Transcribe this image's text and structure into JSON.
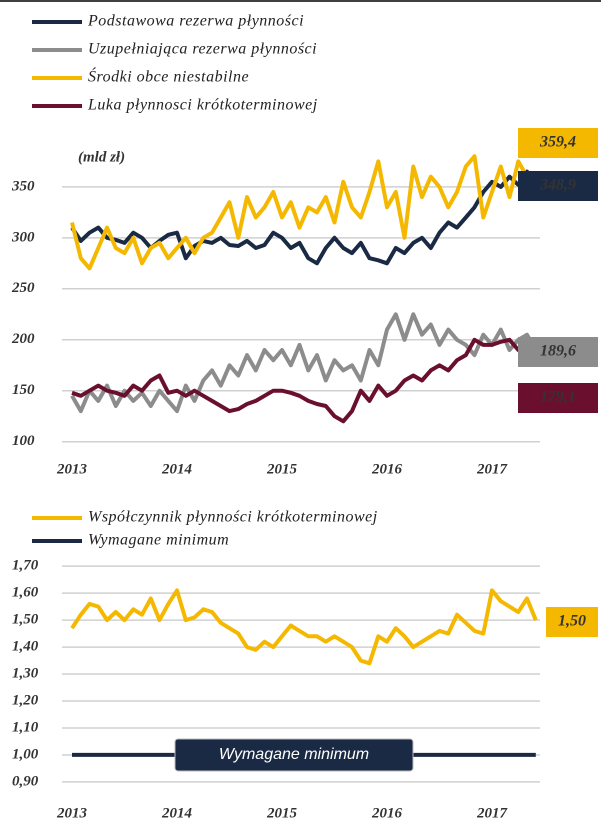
{
  "chart_data": [
    {
      "type": "line",
      "unit_label": "(mld zł)",
      "ylim": [
        85,
        395
      ],
      "yticks": [
        100,
        150,
        200,
        250,
        300,
        350
      ],
      "grid": true,
      "categories": [
        "2013",
        null,
        null,
        null,
        null,
        null,
        null,
        null,
        null,
        null,
        null,
        null,
        "2014",
        null,
        null,
        null,
        null,
        null,
        null,
        null,
        null,
        null,
        null,
        null,
        "2015",
        null,
        null,
        null,
        null,
        null,
        null,
        null,
        null,
        null,
        null,
        null,
        "2016",
        null,
        null,
        null,
        null,
        null,
        null,
        null,
        null,
        null,
        null,
        null,
        "2017",
        null,
        null,
        null,
        null,
        null
      ],
      "series": [
        {
          "name": "Podstawowa rezerwa płynności",
          "color": "#1b2a44",
          "end_label": "348,9",
          "values": [
            310,
            297,
            305,
            310,
            300,
            298,
            295,
            305,
            300,
            290,
            297,
            303,
            305,
            280,
            292,
            297,
            295,
            300,
            293,
            292,
            297,
            290,
            293,
            305,
            300,
            290,
            295,
            280,
            275,
            290,
            300,
            290,
            285,
            295,
            280,
            278,
            275,
            290,
            285,
            295,
            300,
            290,
            305,
            315,
            310,
            320,
            330,
            345,
            355,
            350,
            360,
            352,
            365,
            348.9
          ]
        },
        {
          "name": "Uzupełniająca rezerwa płynności",
          "color": "#8c8c8c",
          "end_label": "189,6",
          "values": [
            145,
            130,
            150,
            140,
            155,
            135,
            150,
            140,
            148,
            135,
            150,
            140,
            130,
            155,
            140,
            160,
            170,
            155,
            175,
            165,
            185,
            170,
            190,
            180,
            190,
            175,
            195,
            170,
            185,
            160,
            180,
            170,
            175,
            160,
            190,
            175,
            210,
            225,
            200,
            225,
            205,
            215,
            195,
            210,
            200,
            195,
            185,
            205,
            195,
            210,
            190,
            200,
            205,
            189.6
          ]
        },
        {
          "name": "Środki obce niestabilne",
          "color": "#f5b800",
          "end_label": "359,4",
          "values": [
            315,
            280,
            270,
            290,
            310,
            290,
            285,
            300,
            275,
            290,
            295,
            280,
            290,
            300,
            285,
            300,
            305,
            320,
            335,
            300,
            340,
            320,
            330,
            345,
            320,
            335,
            310,
            330,
            325,
            340,
            315,
            355,
            330,
            320,
            345,
            375,
            330,
            345,
            300,
            370,
            340,
            360,
            350,
            330,
            345,
            370,
            380,
            320,
            345,
            370,
            340,
            375,
            360,
            359.4
          ]
        },
        {
          "name": "Luka płynnosci krótkoterminowej",
          "color": "#6b0f2e",
          "end_label": "179,1",
          "values": [
            148,
            145,
            150,
            155,
            150,
            148,
            145,
            155,
            150,
            160,
            165,
            148,
            150,
            145,
            150,
            145,
            140,
            135,
            130,
            132,
            137,
            140,
            145,
            150,
            150,
            148,
            145,
            140,
            137,
            135,
            125,
            120,
            130,
            150,
            140,
            155,
            145,
            150,
            160,
            165,
            160,
            170,
            175,
            170,
            180,
            185,
            200,
            195,
            195,
            198,
            200,
            190,
            195,
            179.1
          ]
        }
      ]
    },
    {
      "type": "line",
      "ylim": [
        0.87,
        1.76
      ],
      "yticks": [
        {
          "value": 0.9,
          "label": "0,90"
        },
        {
          "value": 1.0,
          "label": "1,00"
        },
        {
          "value": 1.1,
          "label": "1,10"
        },
        {
          "value": 1.2,
          "label": "1,20"
        },
        {
          "value": 1.3,
          "label": "1,30"
        },
        {
          "value": 1.4,
          "label": "1,40"
        },
        {
          "value": 1.5,
          "label": "1,50"
        },
        {
          "value": 1.6,
          "label": "1,60"
        },
        {
          "value": 1.7,
          "label": "1,70"
        }
      ],
      "grid": true,
      "annotation": "Wymagane minimum",
      "categories": [
        "2013",
        null,
        null,
        null,
        null,
        null,
        null,
        null,
        null,
        null,
        null,
        null,
        "2014",
        null,
        null,
        null,
        null,
        null,
        null,
        null,
        null,
        null,
        null,
        null,
        "2015",
        null,
        null,
        null,
        null,
        null,
        null,
        null,
        null,
        null,
        null,
        null,
        "2016",
        null,
        null,
        null,
        null,
        null,
        null,
        null,
        null,
        null,
        null,
        null,
        "2017",
        null,
        null,
        null,
        null,
        null
      ],
      "series": [
        {
          "name": "Współczynnik płynności krótkoterminowej",
          "color": "#f5b800",
          "end_label": "1,50",
          "values": [
            1.47,
            1.52,
            1.56,
            1.55,
            1.5,
            1.53,
            1.5,
            1.54,
            1.52,
            1.58,
            1.5,
            1.56,
            1.61,
            1.5,
            1.51,
            1.54,
            1.53,
            1.49,
            1.47,
            1.45,
            1.4,
            1.39,
            1.42,
            1.4,
            1.44,
            1.48,
            1.46,
            1.44,
            1.44,
            1.42,
            1.44,
            1.42,
            1.4,
            1.35,
            1.34,
            1.44,
            1.42,
            1.47,
            1.44,
            1.4,
            1.42,
            1.44,
            1.46,
            1.45,
            1.52,
            1.49,
            1.46,
            1.45,
            1.61,
            1.57,
            1.55,
            1.53,
            1.58,
            1.5
          ]
        },
        {
          "name": "Wymagane minimum",
          "color": "#1b2a44",
          "values": [
            1,
            1,
            1,
            1,
            1,
            1,
            1,
            1,
            1,
            1,
            1,
            1,
            1,
            1,
            1,
            1,
            1,
            1,
            1,
            1,
            1,
            1,
            1,
            1,
            1,
            1,
            1,
            1,
            1,
            1,
            1,
            1,
            1,
            1,
            1,
            1,
            1,
            1,
            1,
            1,
            1,
            1,
            1,
            1,
            1,
            1,
            1,
            1,
            1,
            1,
            1,
            1,
            1,
            1
          ]
        }
      ]
    }
  ]
}
